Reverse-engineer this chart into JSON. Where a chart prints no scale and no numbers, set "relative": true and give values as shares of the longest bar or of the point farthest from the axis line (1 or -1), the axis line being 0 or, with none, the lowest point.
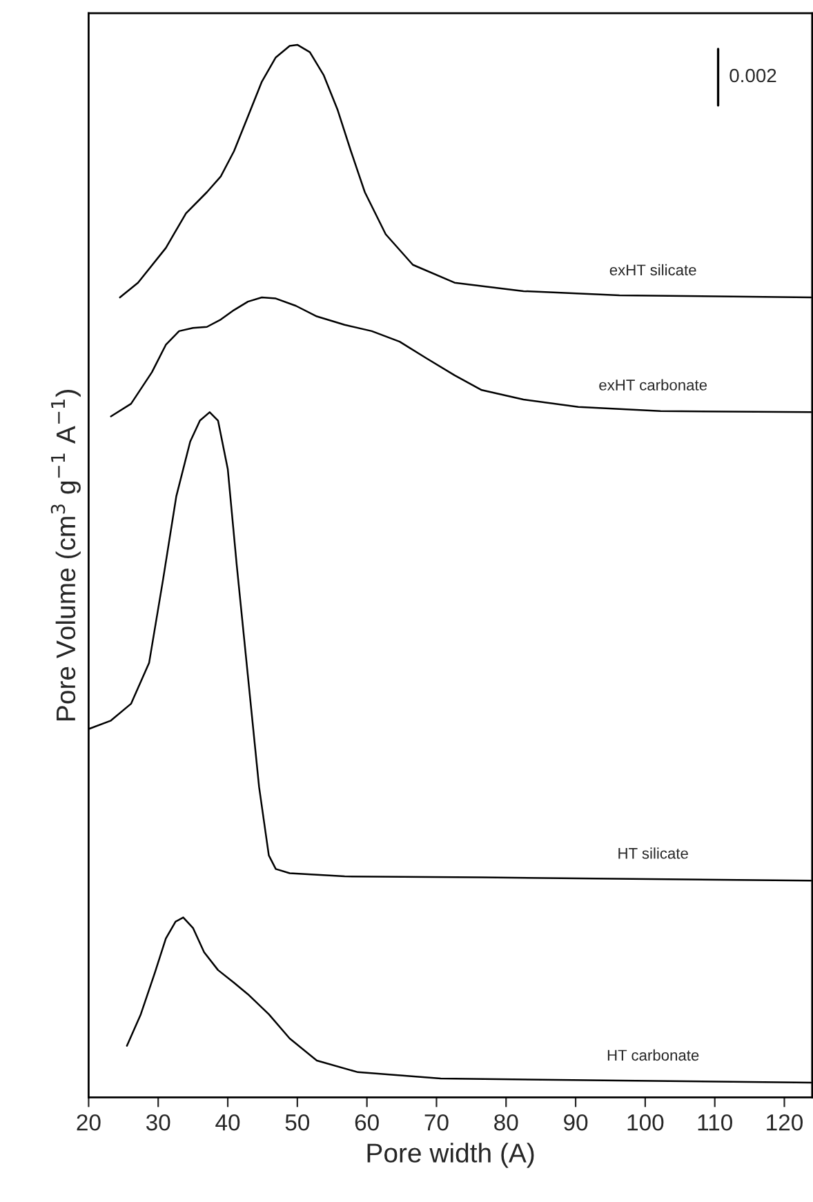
{
  "chart_data": {
    "type": "line",
    "relative": true,
    "xlabel": "Pore width (A)",
    "ylabel": "Pore Volume (cm$^{3}$ g$^{−1}$ A$^{−1}$)",
    "xlim": [
      20,
      124
    ],
    "xticks": [
      20,
      30,
      40,
      50,
      60,
      70,
      80,
      90,
      100,
      110,
      120
    ],
    "tick_labels": "x",
    "grid": false,
    "marker": "none",
    "line_style": "solid",
    "annotations": [
      "0.002"
    ],
    "series": [
      {
        "name": "exHT silicate",
        "color": "#000000",
        "x": [
          24.5,
          27.1,
          31.1,
          34.0,
          37.0,
          39.0,
          40.9,
          42.9,
          44.9,
          46.9,
          48.9,
          50.0,
          51.8,
          53.8,
          55.8,
          57.7,
          59.7,
          62.7,
          66.6,
          72.6,
          82.5,
          96.3,
          123.8
        ],
        "values": [
          0.76,
          0.774,
          0.807,
          0.84,
          0.86,
          0.875,
          0.899,
          0.932,
          0.965,
          0.988,
          0.999,
          1.0,
          0.993,
          0.971,
          0.938,
          0.899,
          0.86,
          0.82,
          0.791,
          0.774,
          0.766,
          0.762,
          0.76
        ]
      },
      {
        "name": "exHT carbonate",
        "color": "#000000",
        "x": [
          23.2,
          26.1,
          29.1,
          31.1,
          33.0,
          35.0,
          37.0,
          39.0,
          40.9,
          42.9,
          44.9,
          46.9,
          49.8,
          52.8,
          56.8,
          60.7,
          64.7,
          68.6,
          72.6,
          76.5,
          82.5,
          90.4,
          102.2,
          123.8
        ],
        "values": [
          0.647,
          0.659,
          0.689,
          0.715,
          0.728,
          0.731,
          0.732,
          0.739,
          0.748,
          0.756,
          0.76,
          0.759,
          0.752,
          0.742,
          0.734,
          0.728,
          0.718,
          0.702,
          0.686,
          0.672,
          0.663,
          0.656,
          0.652,
          0.651
        ]
      },
      {
        "name": "HT silicate",
        "color": "#000000",
        "x": [
          20.0,
          23.2,
          26.1,
          28.7,
          30.7,
          32.6,
          34.6,
          36.0,
          37.4,
          38.6,
          40.0,
          41.3,
          42.9,
          44.5,
          45.9,
          46.9,
          48.9,
          56.8,
          76.5,
          123.8
        ],
        "values": [
          0.35,
          0.358,
          0.374,
          0.413,
          0.492,
          0.571,
          0.623,
          0.643,
          0.651,
          0.643,
          0.597,
          0.505,
          0.4,
          0.295,
          0.23,
          0.217,
          0.213,
          0.21,
          0.209,
          0.206
        ]
      },
      {
        "name": "HT carbonate",
        "color": "#000000",
        "x": [
          25.5,
          27.5,
          29.5,
          31.1,
          32.5,
          33.6,
          35.0,
          36.6,
          38.6,
          40.9,
          42.9,
          45.9,
          48.9,
          52.8,
          58.7,
          70.6,
          96.3,
          123.8
        ],
        "values": [
          0.049,
          0.079,
          0.118,
          0.151,
          0.167,
          0.171,
          0.161,
          0.138,
          0.121,
          0.109,
          0.098,
          0.079,
          0.056,
          0.035,
          0.024,
          0.018,
          0.016,
          0.014
        ]
      }
    ]
  }
}
